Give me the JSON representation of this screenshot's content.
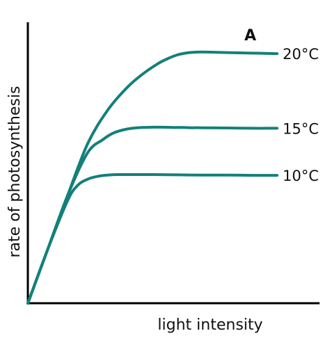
{
  "chart_data": {
    "type": "line",
    "xlabel": "light intensity",
    "ylabel": "rate of photosynthesis",
    "xlim": [
      0,
      100
    ],
    "ylim": [
      0,
      100
    ],
    "grid": false,
    "legend": "labels at right end of each line",
    "annotation": "A",
    "color": "#13807a",
    "series": [
      {
        "name": "20°C",
        "x": [
          0,
          8,
          16,
          24,
          32,
          40,
          46,
          52,
          56,
          60,
          64,
          68,
          72,
          76,
          80,
          85,
          90,
          95,
          100
        ],
        "y": [
          0,
          21,
          42,
          62,
          75,
          84,
          89,
          93,
          95,
          96.5,
          97.3,
          97.6,
          97.6,
          97.5,
          97.4,
          97.3,
          97.2,
          97.1,
          97
        ]
      },
      {
        "name": "15°C",
        "x": [
          0,
          8,
          16,
          24,
          30,
          34,
          38,
          42,
          46,
          50,
          54,
          58,
          62,
          66,
          70,
          80,
          90,
          100
        ],
        "y": [
          0,
          21,
          42,
          58.5,
          63.5,
          66,
          67.3,
          68,
          68.3,
          68.4,
          68.4,
          68.3,
          68.3,
          68.2,
          68.2,
          68.1,
          68,
          68
        ]
      },
      {
        "name": "10°C",
        "x": [
          0,
          8,
          16,
          20,
          24,
          28,
          32,
          36,
          40,
          45,
          50,
          60,
          70,
          80,
          90,
          100
        ],
        "y": [
          0,
          21,
          40,
          45.8,
          48.2,
          49.3,
          49.8,
          50,
          50,
          50,
          50,
          49.9,
          49.8,
          49.8,
          49.7,
          49.7
        ]
      }
    ]
  }
}
